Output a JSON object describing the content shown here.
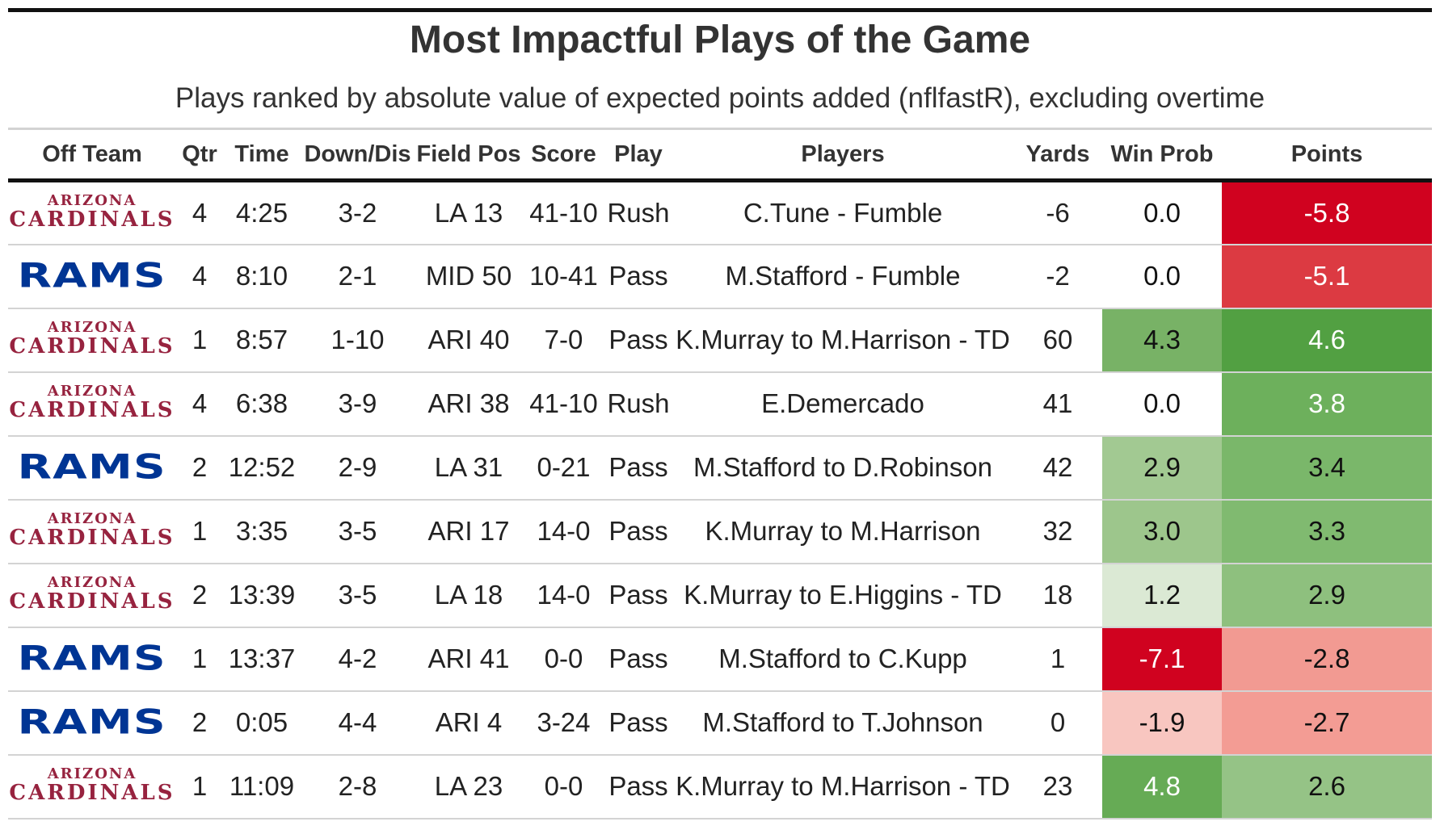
{
  "title": "Most Impactful Plays of the Game",
  "subtitle": "Plays ranked by absolute value of expected points added (nflfastR), excluding overtime",
  "columns": [
    "Off Team",
    "Qtr",
    "Time",
    "Down/Dis",
    "Field Pos",
    "Score",
    "Play",
    "Players",
    "Yards",
    "Win Prob",
    "Points"
  ],
  "logos": {
    "ARI": {
      "line1": "ARIZONA",
      "line2": "CARDINALS",
      "color": "#97233F"
    },
    "LA": {
      "text": "RAMS",
      "color": "#003594"
    }
  },
  "rows": [
    {
      "team": "ARI",
      "qtr": "4",
      "time": "4:25",
      "down": "3-2",
      "field_pos": "LA 13",
      "score": "41-10",
      "play": "Rush",
      "players": "C.Tune - Fumble",
      "yards": "-6",
      "win_prob": "0.0",
      "points": "-5.8",
      "win_prob_bg": "#ffffff",
      "win_prob_fg": "#111111",
      "points_bg": "#d0021f",
      "points_fg": "#ffffff"
    },
    {
      "team": "LA",
      "qtr": "4",
      "time": "8:10",
      "down": "2-1",
      "field_pos": "MID 50",
      "score": "10-41",
      "play": "Pass",
      "players": "M.Stafford - Fumble",
      "yards": "-2",
      "win_prob": "0.0",
      "points": "-5.1",
      "win_prob_bg": "#ffffff",
      "win_prob_fg": "#111111",
      "points_bg": "#dc3a42",
      "points_fg": "#ffffff"
    },
    {
      "team": "ARI",
      "qtr": "1",
      "time": "8:57",
      "down": "1-10",
      "field_pos": "ARI 40",
      "score": "7-0",
      "play": "Pass",
      "players": "K.Murray to M.Harrison - TD",
      "yards": "60",
      "win_prob": "4.3",
      "points": "4.6",
      "win_prob_bg": "#78b266",
      "win_prob_fg": "#111111",
      "points_bg": "#52a042",
      "points_fg": "#ffffff"
    },
    {
      "team": "ARI",
      "qtr": "4",
      "time": "6:38",
      "down": "3-9",
      "field_pos": "ARI 38",
      "score": "41-10",
      "play": "Rush",
      "players": "E.Demercado",
      "yards": "41",
      "win_prob": "0.0",
      "points": "3.8",
      "win_prob_bg": "#ffffff",
      "win_prob_fg": "#111111",
      "points_bg": "#6db05c",
      "points_fg": "#ffffff"
    },
    {
      "team": "LA",
      "qtr": "2",
      "time": "12:52",
      "down": "2-9",
      "field_pos": "LA 31",
      "score": "0-21",
      "play": "Pass",
      "players": "M.Stafford to D.Robinson",
      "yards": "42",
      "win_prob": "2.9",
      "points": "3.4",
      "win_prob_bg": "#a2c992",
      "win_prob_fg": "#111111",
      "points_bg": "#7ab76a",
      "points_fg": "#111111"
    },
    {
      "team": "ARI",
      "qtr": "1",
      "time": "3:35",
      "down": "3-5",
      "field_pos": "ARI 17",
      "score": "14-0",
      "play": "Pass",
      "players": "K.Murray to M.Harrison",
      "yards": "32",
      "win_prob": "3.0",
      "points": "3.3",
      "win_prob_bg": "#9dc68c",
      "win_prob_fg": "#111111",
      "points_bg": "#80ba70",
      "points_fg": "#111111"
    },
    {
      "team": "ARI",
      "qtr": "2",
      "time": "13:39",
      "down": "3-5",
      "field_pos": "LA 18",
      "score": "14-0",
      "play": "Pass",
      "players": "K.Murray to E.Higgins - TD",
      "yards": "18",
      "win_prob": "1.2",
      "points": "2.9",
      "win_prob_bg": "#dbe9d4",
      "win_prob_fg": "#111111",
      "points_bg": "#8ec07e",
      "points_fg": "#111111"
    },
    {
      "team": "LA",
      "qtr": "1",
      "time": "13:37",
      "down": "4-2",
      "field_pos": "ARI 41",
      "score": "0-0",
      "play": "Pass",
      "players": "M.Stafford to C.Kupp",
      "yards": "1",
      "win_prob": "-7.1",
      "points": "-2.8",
      "win_prob_bg": "#d0021f",
      "win_prob_fg": "#ffffff",
      "points_bg": "#f29a92",
      "points_fg": "#111111"
    },
    {
      "team": "LA",
      "qtr": "2",
      "time": "0:05",
      "down": "4-4",
      "field_pos": "ARI 4",
      "score": "3-24",
      "play": "Pass",
      "players": "M.Stafford to T.Johnson",
      "yards": "0",
      "win_prob": "-1.9",
      "points": "-2.7",
      "win_prob_bg": "#f8c6c0",
      "win_prob_fg": "#111111",
      "points_bg": "#f39c94",
      "points_fg": "#111111"
    },
    {
      "team": "ARI",
      "qtr": "1",
      "time": "11:09",
      "down": "2-8",
      "field_pos": "LA 23",
      "score": "0-0",
      "play": "Pass",
      "players": "K.Murray to M.Harrison - TD",
      "yards": "23",
      "win_prob": "4.8",
      "points": "2.6",
      "win_prob_bg": "#66ab55",
      "win_prob_fg": "#ffffff",
      "points_bg": "#95c386",
      "points_fg": "#111111"
    }
  ]
}
